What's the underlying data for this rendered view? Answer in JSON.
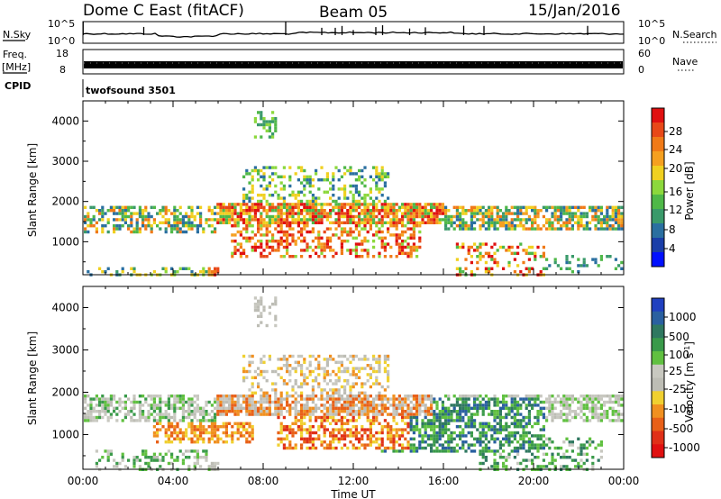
{
  "header": {
    "title": "Dome C East (fitACF)",
    "beam": "Beam 05",
    "date": "15/Jan/2016",
    "cpid_label": "CPID",
    "cpid_value": "twofsound 3501"
  },
  "status_panels": {
    "nsky_label": "N.Sky",
    "nsky_ticks": [
      "10^5",
      "10^0"
    ],
    "nsearch_label": "N.Search",
    "nsearch_ticks": [
      "10^5",
      "10^0"
    ],
    "freq_label": "Freq.",
    "freq_unit": "[MHz]",
    "freq_ticks": [
      "18",
      "8"
    ],
    "nave_label": "Nave",
    "nave_ticks": [
      "60",
      "0"
    ]
  },
  "colors": {
    "power_scale": [
      "#0010ff",
      "#1a3ea8",
      "#2a6fa0",
      "#3a9a6a",
      "#4fb848",
      "#8cd83c",
      "#f0d020",
      "#f5a020",
      "#f07a18",
      "#e84818",
      "#e01010"
    ],
    "velocity_scale": [
      "#2040c0",
      "#2a60a0",
      "#2f7860",
      "#3a9a4a",
      "#60c040",
      "#c8c8c0",
      "#bdbdb5",
      "#f0d030",
      "#f09020",
      "#e86018",
      "#e03018",
      "#e01010"
    ]
  },
  "chart_data": [
    {
      "type": "heatmap",
      "panel": "power",
      "xlabel": "Time UT",
      "ylabel": "Slant Range [km]",
      "x_ticks": [
        "00:00",
        "04:00",
        "08:00",
        "12:00",
        "16:00",
        "20:00",
        "00:00"
      ],
      "xlim_hours": [
        0,
        24
      ],
      "ylim_km": [
        180,
        4500
      ],
      "y_ticks": [
        1000,
        2000,
        3000,
        4000
      ],
      "colorbar": {
        "label": "Power [dB]",
        "ticks": [
          4,
          8,
          12,
          16,
          20,
          24,
          28
        ],
        "range": [
          0,
          30
        ]
      }
    },
    {
      "type": "heatmap",
      "panel": "velocity",
      "xlabel": "Time UT",
      "ylabel": "Slant Range [km]",
      "x_ticks": [
        "00:00",
        "04:00",
        "08:00",
        "12:00",
        "16:00",
        "20:00",
        "00:00"
      ],
      "xlim_hours": [
        0,
        24
      ],
      "ylim_km": [
        180,
        4500
      ],
      "y_ticks": [
        1000,
        2000,
        3000,
        4000
      ],
      "colorbar": {
        "label": "Velocity [m s",
        "label_superscript": "-1",
        "ticks": [
          "1000",
          "500",
          "100",
          "25",
          "-25",
          "-100",
          "-500",
          "-1000"
        ],
        "range": [
          -1000,
          1000
        ]
      }
    }
  ]
}
